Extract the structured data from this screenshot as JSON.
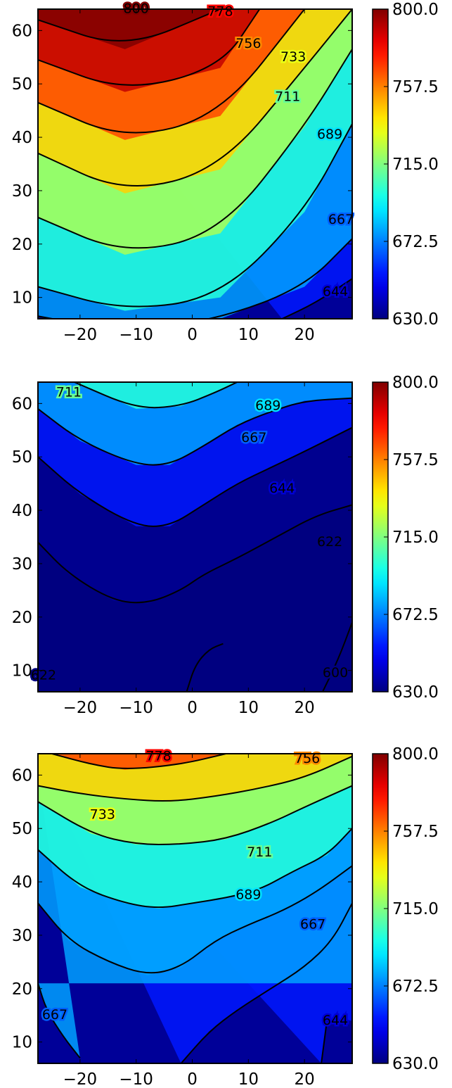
{
  "chart_data": [
    {
      "type": "heatmap",
      "title": "",
      "xlabel": "",
      "ylabel": "",
      "xlim": [
        -27.5,
        28.5
      ],
      "ylim": [
        6,
        64
      ],
      "xticks": [
        "−20",
        "−10",
        "0",
        "10",
        "20"
      ],
      "yticks": [
        "10",
        "20",
        "30",
        "40",
        "50",
        "60"
      ],
      "colorbar": {
        "range": [
          630,
          800
        ],
        "ticks": [
          "630.0",
          "672.5",
          "715.0",
          "757.5",
          "800.0"
        ],
        "colormap": "jet"
      },
      "contours": [
        {
          "level": 644,
          "points": [
            [
              16,
              6
            ],
            [
              22,
              9
            ],
            [
              28.5,
              13.5
            ]
          ]
        },
        {
          "level": 667,
          "points": [
            [
              -27.5,
              6.5
            ],
            [
              -12,
              3.5
            ],
            [
              5,
              6
            ],
            [
              20,
              12
            ],
            [
              28.5,
              21
            ]
          ]
        },
        {
          "level": 689,
          "points": [
            [
              -27.5,
              12
            ],
            [
              -12,
              7.5
            ],
            [
              5,
              10
            ],
            [
              20,
              26
            ],
            [
              28.5,
              42.5
            ]
          ]
        },
        {
          "level": 711,
          "points": [
            [
              -27.5,
              25
            ],
            [
              -12,
              18
            ],
            [
              5,
              22
            ],
            [
              20,
              42
            ],
            [
              28.5,
              56.5
            ]
          ]
        },
        {
          "level": 733,
          "points": [
            [
              -27.5,
              37
            ],
            [
              -12,
              29.5
            ],
            [
              5,
              34
            ],
            [
              20,
              53
            ],
            [
              28.5,
              64
            ]
          ]
        },
        {
          "level": 756,
          "points": [
            [
              -27.5,
              46.5
            ],
            [
              -12,
              39.5
            ],
            [
              5,
              44
            ],
            [
              20,
              64
            ]
          ]
        },
        {
          "level": 778,
          "points": [
            [
              -27.5,
              54.5
            ],
            [
              -12,
              48.5
            ],
            [
              5,
              53
            ],
            [
              12,
              64
            ]
          ]
        },
        {
          "level": 800,
          "points": [
            [
              -27.5,
              62
            ],
            [
              -12,
              56.5
            ],
            [
              5,
              64
            ]
          ]
        }
      ],
      "contour_labels": [
        {
          "text": "800",
          "x": -10,
          "y": 64
        },
        {
          "text": "778",
          "x": 5,
          "y": 63.5
        },
        {
          "text": "756",
          "x": 10,
          "y": 57.5
        },
        {
          "text": "733",
          "x": 18,
          "y": 55
        },
        {
          "text": "711",
          "x": 17,
          "y": 47.5
        },
        {
          "text": "689",
          "x": 24.5,
          "y": 40.5
        },
        {
          "text": "667",
          "x": 26.5,
          "y": 24.5
        },
        {
          "text": "644",
          "x": 25.5,
          "y": 11
        }
      ]
    },
    {
      "type": "heatmap",
      "title": "",
      "xlabel": "",
      "ylabel": "",
      "xlim": [
        -27.5,
        28.5
      ],
      "ylim": [
        6,
        64
      ],
      "xticks": [
        "−20",
        "−10",
        "0",
        "10",
        "20"
      ],
      "yticks": [
        "10",
        "20",
        "30",
        "40",
        "50",
        "60"
      ],
      "colorbar": {
        "range": [
          630,
          800
        ],
        "ticks": [
          "630.0",
          "672.5",
          "715.0",
          "757.5",
          "800.0"
        ],
        "colormap": "jet"
      },
      "contours": [
        {
          "level": 600,
          "points": [
            [
              23,
              5.5
            ],
            [
              26,
              12
            ],
            [
              28.5,
              19
            ]
          ]
        },
        {
          "level": 600,
          "points": [
            [
              -1,
              6
            ],
            [
              0.5,
              11
            ],
            [
              3,
              14
            ],
            [
              5.5,
              15
            ]
          ]
        },
        {
          "level": 622,
          "points": [
            [
              -27.5,
              34
            ],
            [
              -22,
              28
            ],
            [
              -14,
              23
            ],
            [
              -8,
              22.5
            ],
            [
              -2,
              25
            ],
            [
              2,
              28
            ],
            [
              8,
              31
            ],
            [
              15,
              35
            ],
            [
              22,
              39
            ],
            [
              28.5,
              41
            ]
          ]
        },
        {
          "level": 644,
          "points": [
            [
              -27.5,
              50
            ],
            [
              -20,
              43
            ],
            [
              -10,
              37
            ],
            [
              -4,
              37
            ],
            [
              2,
              41
            ],
            [
              8,
              45
            ],
            [
              14,
              48
            ],
            [
              20,
              51
            ],
            [
              28.5,
              55.5
            ]
          ]
        },
        {
          "level": 667,
          "points": [
            [
              -27.5,
              59
            ],
            [
              -20,
              53
            ],
            [
              -10,
              48.5
            ],
            [
              -4,
              48.5
            ],
            [
              2,
              52
            ],
            [
              8,
              56
            ],
            [
              14,
              58.5
            ],
            [
              20,
              60.5
            ],
            [
              28.5,
              61
            ]
          ]
        },
        {
          "level": 689,
          "points": [
            [
              -21,
              64
            ],
            [
              -10,
              59
            ],
            [
              -2,
              59.5
            ],
            [
              4,
              62
            ],
            [
              8,
              64
            ]
          ]
        }
      ],
      "contour_labels": [
        {
          "text": "711",
          "x": -22,
          "y": 62
        },
        {
          "text": "689",
          "x": 13.5,
          "y": 59.5
        },
        {
          "text": "667",
          "x": 11,
          "y": 53.5
        },
        {
          "text": "644",
          "x": 16,
          "y": 44
        },
        {
          "text": "622",
          "x": 24.5,
          "y": 34
        },
        {
          "text": "622",
          "x": -26.5,
          "y": 9
        },
        {
          "text": "600",
          "x": 25.5,
          "y": 9.5
        }
      ]
    },
    {
      "type": "heatmap",
      "title": "",
      "xlabel": "",
      "ylabel": "",
      "xlim": [
        -27.5,
        28.5
      ],
      "ylim": [
        6,
        64
      ],
      "xticks": [
        "−20",
        "−10",
        "0",
        "10",
        "20"
      ],
      "yticks": [
        "10",
        "20",
        "30",
        "40",
        "50",
        "60"
      ],
      "colorbar": {
        "range": [
          630,
          800
        ],
        "ticks": [
          "630.0",
          "672.5",
          "715.0",
          "757.5",
          "800.0"
        ],
        "colormap": "jet"
      },
      "contours": [
        {
          "level": 644,
          "points": [
            [
              -2,
              6
            ],
            [
              3,
              12
            ],
            [
              8,
              16
            ],
            [
              14,
              20
            ],
            [
              20,
              24
            ],
            [
              25,
              29
            ],
            [
              28.5,
              36
            ]
          ]
        },
        {
          "level": 644,
          "points": [
            [
              23,
              6
            ],
            [
              23.5,
              10
            ],
            [
              24,
              14
            ]
          ]
        },
        {
          "level": 667,
          "points": [
            [
              -20,
              7
            ],
            [
              -23,
              11
            ],
            [
              -26,
              16
            ],
            [
              -27.5,
              21
            ]
          ]
        },
        {
          "level": 667,
          "points": [
            [
              -27.5,
              36
            ],
            [
              -22,
              29
            ],
            [
              -15,
              25
            ],
            [
              -8,
              22.5
            ],
            [
              -2,
              24
            ],
            [
              4,
              29
            ],
            [
              10,
              32
            ],
            [
              16,
              34.5
            ],
            [
              22,
              38
            ],
            [
              28.5,
              43
            ]
          ]
        },
        {
          "level": 689,
          "points": [
            [
              -27.5,
              46
            ],
            [
              -20,
              39
            ],
            [
              -12,
              36
            ],
            [
              -6,
              35
            ],
            [
              0,
              36
            ],
            [
              6,
              37
            ],
            [
              12,
              38.5
            ],
            [
              18,
              42
            ],
            [
              24,
              45
            ],
            [
              28.5,
              50
            ]
          ]
        },
        {
          "level": 711,
          "points": [
            [
              -27.5,
              55
            ],
            [
              -18,
              49
            ],
            [
              -10,
              47
            ],
            [
              -2,
              47
            ],
            [
              6,
              48
            ],
            [
              14,
              51
            ],
            [
              20,
              54
            ],
            [
              28.5,
              58
            ]
          ]
        },
        {
          "level": 733,
          "points": [
            [
              -27.5,
              58
            ],
            [
              -20,
              56.5
            ],
            [
              -12,
              55.5
            ],
            [
              -4,
              55
            ],
            [
              4,
              56
            ],
            [
              12,
              57.5
            ],
            [
              20,
              59.5
            ],
            [
              28.5,
              63.5
            ]
          ]
        },
        {
          "level": 756,
          "points": [
            [
              -25,
              64
            ],
            [
              -18,
              62
            ],
            [
              -12,
              61
            ],
            [
              -2,
              62
            ],
            [
              6,
              64
            ]
          ]
        }
      ],
      "contour_labels": [
        {
          "text": "778",
          "x": -6,
          "y": 63.5
        },
        {
          "text": "756",
          "x": 20.5,
          "y": 63
        },
        {
          "text": "733",
          "x": -16,
          "y": 52.5
        },
        {
          "text": "711",
          "x": 12,
          "y": 45.5
        },
        {
          "text": "689",
          "x": 10,
          "y": 37.5
        },
        {
          "text": "667",
          "x": 21.5,
          "y": 32
        },
        {
          "text": "644",
          "x": 25.5,
          "y": 14
        },
        {
          "text": "667",
          "x": -24.5,
          "y": 15
        }
      ]
    }
  ]
}
